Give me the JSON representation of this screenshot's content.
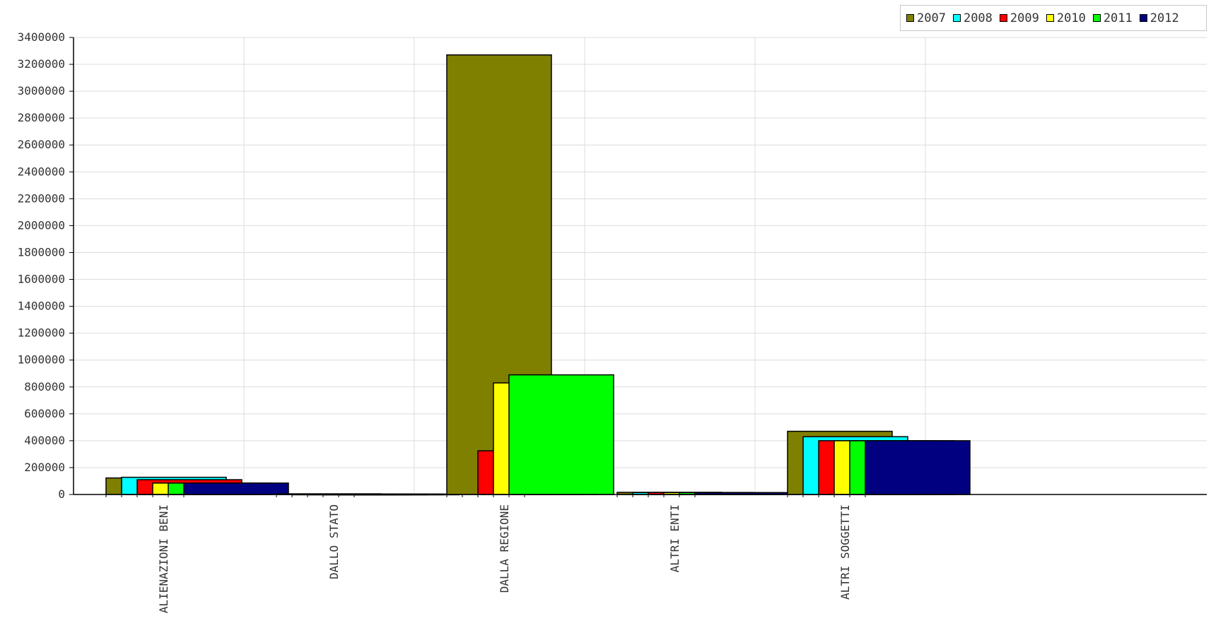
{
  "chart_data": {
    "type": "bar",
    "categories": [
      "ALIENAZIONI BENI",
      "DALLO STATO",
      "DALLA REGIONE",
      "ALTRI ENTI",
      "ALTRI SOGGETTI"
    ],
    "series": [
      {
        "name": "2007",
        "color": "#808000",
        "values": [
          123000,
          5000,
          3270000,
          16000,
          470000
        ]
      },
      {
        "name": "2008",
        "color": "#00ffff",
        "values": [
          128000,
          3000,
          0,
          14000,
          430000
        ]
      },
      {
        "name": "2009",
        "color": "#ff0000",
        "values": [
          110000,
          3000,
          325000,
          15000,
          400000
        ]
      },
      {
        "name": "2010",
        "color": "#ffff00",
        "values": [
          85000,
          3000,
          830000,
          14000,
          400000
        ]
      },
      {
        "name": "2011",
        "color": "#00ff00",
        "values": [
          85000,
          3000,
          890000,
          14000,
          400000
        ]
      },
      {
        "name": "2012",
        "color": "#000080",
        "values": [
          85000,
          3000,
          0,
          14000,
          400000
        ]
      }
    ],
    "title": "",
    "xlabel": "",
    "ylabel": "",
    "ylim": [
      0,
      3400000
    ],
    "yticks": [
      "0",
      "200000",
      "400000",
      "600000",
      "800000",
      "1000000",
      "1200000",
      "1400000",
      "1600000",
      "1800000",
      "2000000",
      "2200000",
      "2400000",
      "2600000",
      "2800000",
      "3000000",
      "3200000",
      "3400000"
    ],
    "grid": true,
    "legend_position": "top-right"
  }
}
